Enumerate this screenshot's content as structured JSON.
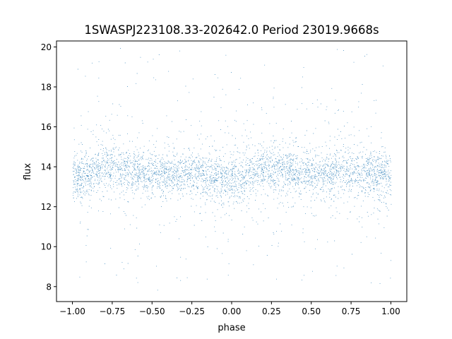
{
  "chart_data": {
    "type": "scatter",
    "title": "1SWASPJ223108.33-202642.0 Period 23019.9668s",
    "xlabel": "phase",
    "ylabel": "flux",
    "xlim": [
      -1.1,
      1.1
    ],
    "ylim": [
      7.25,
      20.3
    ],
    "xticks": [
      -1.0,
      -0.75,
      -0.5,
      -0.25,
      0.0,
      0.25,
      0.5,
      0.75,
      1.0
    ],
    "xtick_labels": [
      "−1.00",
      "−0.75",
      "−0.50",
      "−0.25",
      "0.00",
      "0.25",
      "0.50",
      "0.75",
      "1.00"
    ],
    "yticks": [
      8,
      10,
      12,
      14,
      16,
      18,
      20
    ],
    "ytick_labels": [
      "8",
      "10",
      "12",
      "14",
      "16",
      "18",
      "20"
    ],
    "grid": false,
    "legend": false,
    "marker_color": "#1f77b4",
    "series": [
      {
        "phase_range": [
          -1.0,
          1.0
        ],
        "flux_range": [
          7.8,
          20.0
        ],
        "center_curve": {
          "phase": [
            -1.0,
            -0.75,
            -0.5,
            -0.25,
            0.0,
            0.25,
            0.5,
            0.75,
            1.0
          ],
          "flux": [
            13.5,
            14.0,
            13.6,
            13.7,
            13.3,
            14.0,
            13.6,
            13.8,
            13.5
          ]
        },
        "core_band_halfwidth": 1.1,
        "scatter_spread": "outliers to 7.8 and 20.0"
      }
    ]
  }
}
